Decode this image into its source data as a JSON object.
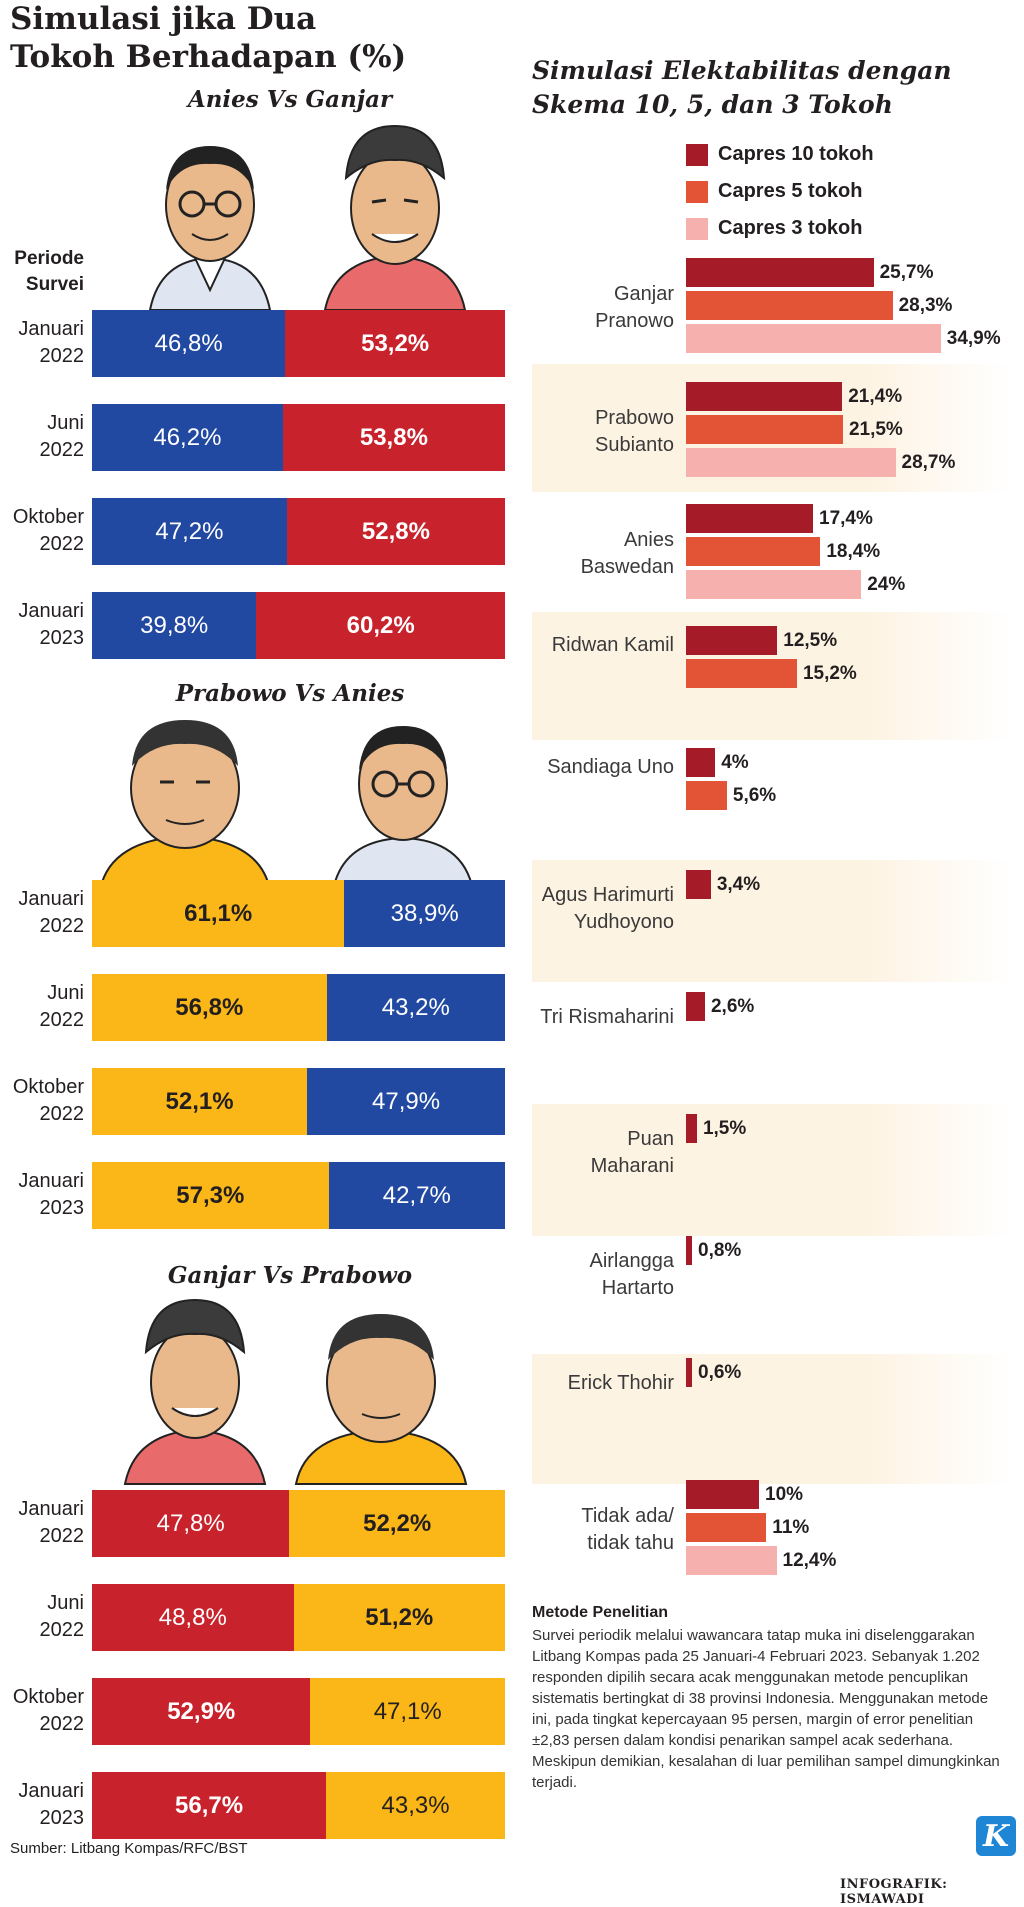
{
  "title_left": "Simulasi jika Dua Tokoh Berhadapan (%)",
  "title_right": "Simulasi Elektabilitas dengan Skema 10, 5, dan 3 Tokoh",
  "periode_header": "Periode Survei",
  "colors": {
    "anies_blue": "#2249a2",
    "ganjar_red": "#c8232c",
    "prabowo_yellow": "#fab717",
    "capres10": "#a51b28",
    "capres5": "#e35336",
    "capres3": "#f6b0ad",
    "band": "#fdf3e3"
  },
  "chart_data": [
    {
      "type": "bar",
      "title": "Anies Vs Ganjar",
      "categories": [
        "Januari 2022",
        "Juni 2022",
        "Oktober 2022",
        "Januari 2023"
      ],
      "series": [
        {
          "name": "Anies",
          "values": [
            "46,8%",
            "46,2%",
            "47,2%",
            "39,8%"
          ],
          "numeric": [
            46.8,
            46.2,
            47.2,
            39.8
          ],
          "color": "#2249a2"
        },
        {
          "name": "Ganjar",
          "values": [
            "53,2%",
            "53,8%",
            "52,8%",
            "60,2%"
          ],
          "numeric": [
            53.2,
            53.8,
            52.8,
            60.2
          ],
          "color": "#c8232c"
        }
      ]
    },
    {
      "type": "bar",
      "title": "Prabowo Vs Anies",
      "categories": [
        "Januari 2022",
        "Juni 2022",
        "Oktober 2022",
        "Januari 2023"
      ],
      "series": [
        {
          "name": "Prabowo",
          "values": [
            "61,1%",
            "56,8%",
            "52,1%",
            "57,3%"
          ],
          "numeric": [
            61.1,
            56.8,
            52.1,
            57.3
          ],
          "color": "#fab717"
        },
        {
          "name": "Anies",
          "values": [
            "38,9%",
            "43,2%",
            "47,9%",
            "42,7%"
          ],
          "numeric": [
            38.9,
            43.2,
            47.9,
            42.7
          ],
          "color": "#2249a2"
        }
      ]
    },
    {
      "type": "bar",
      "title": "Ganjar Vs Prabowo",
      "categories": [
        "Januari 2022",
        "Juni 2022",
        "Oktober 2022",
        "Januari 2023"
      ],
      "series": [
        {
          "name": "Ganjar",
          "values": [
            "47,8%",
            "48,8%",
            "52,9%",
            "56,7%"
          ],
          "numeric": [
            47.8,
            48.8,
            52.9,
            56.7
          ],
          "color": "#c8232c"
        },
        {
          "name": "Prabowo",
          "values": [
            "52,2%",
            "51,2%",
            "47,1%",
            "43,3%"
          ],
          "numeric": [
            52.2,
            51.2,
            47.1,
            43.3
          ],
          "color": "#fab717"
        }
      ]
    },
    {
      "type": "bar",
      "title": "Simulasi Elektabilitas dengan Skema 10, 5, dan 3 Tokoh",
      "legend": [
        "Capres 10 tokoh",
        "Capres 5 tokoh",
        "Capres 3 tokoh"
      ],
      "candidates": [
        {
          "name": "Ganjar Pranowo",
          "bars": [
            {
              "s": 0,
              "v": 25.7,
              "label": "25,7%"
            },
            {
              "s": 1,
              "v": 28.3,
              "label": "28,3%"
            },
            {
              "s": 2,
              "v": 34.9,
              "label": "34,9%"
            }
          ]
        },
        {
          "name": "Prabowo Subianto",
          "bars": [
            {
              "s": 0,
              "v": 21.4,
              "label": "21,4%"
            },
            {
              "s": 1,
              "v": 21.5,
              "label": "21,5%"
            },
            {
              "s": 2,
              "v": 28.7,
              "label": "28,7%"
            }
          ]
        },
        {
          "name": "Anies Baswedan",
          "bars": [
            {
              "s": 0,
              "v": 17.4,
              "label": "17,4%"
            },
            {
              "s": 1,
              "v": 18.4,
              "label": "18,4%"
            },
            {
              "s": 2,
              "v": 24,
              "label": "24%"
            }
          ]
        },
        {
          "name": "Ridwan Kamil",
          "bars": [
            {
              "s": 0,
              "v": 12.5,
              "label": "12,5%"
            },
            {
              "s": 1,
              "v": 15.2,
              "label": "15,2%"
            }
          ]
        },
        {
          "name": "Sandiaga Uno",
          "bars": [
            {
              "s": 0,
              "v": 4,
              "label": "4%"
            },
            {
              "s": 1,
              "v": 5.6,
              "label": "5,6%"
            }
          ]
        },
        {
          "name": "Agus Harimurti Yudhoyono",
          "bars": [
            {
              "s": 0,
              "v": 3.4,
              "label": "3,4%"
            }
          ]
        },
        {
          "name": "Tri Rismaharini",
          "bars": [
            {
              "s": 0,
              "v": 2.6,
              "label": "2,6%"
            }
          ]
        },
        {
          "name": "Puan Maharani",
          "bars": [
            {
              "s": 0,
              "v": 1.5,
              "label": "1,5%"
            }
          ]
        },
        {
          "name": "Airlangga Hartarto",
          "bars": [
            {
              "s": 0,
              "v": 0.8,
              "label": "0,8%"
            }
          ]
        },
        {
          "name": "Erick Thohir",
          "bars": [
            {
              "s": 0,
              "v": 0.6,
              "label": "0,6%"
            }
          ]
        },
        {
          "name": "Tidak ada/ tidak tahu",
          "bars": [
            {
              "s": 0,
              "v": 10,
              "label": "10%"
            },
            {
              "s": 1,
              "v": 11,
              "label": "11%"
            },
            {
              "s": 2,
              "v": 12.4,
              "label": "12,4%"
            }
          ]
        }
      ]
    }
  ],
  "method": {
    "title": "Metode Penelitian",
    "text": "Survei periodik melalui wawancara tatap muka ini diselenggarakan Litbang Kompas pada 25 Januari-4 Februari 2023. Sebanyak 1.202 responden dipilih secara acak menggunakan metode pencuplikan sistematis bertingkat di 38 provinsi Indonesia. Menggunakan metode ini, pada tingkat kepercayaan 95 persen, margin of error penelitian ±2,83 persen dalam kondisi penarikan sampel acak sederhana. Meskipun demikian, kesalahan di luar pemilihan sampel dimungkinkan terjadi."
  },
  "source": "Sumber: Litbang Kompas/RFC/BST",
  "credit": "INFOGRAFIK: ISMAWADI",
  "logo_letter": "K"
}
